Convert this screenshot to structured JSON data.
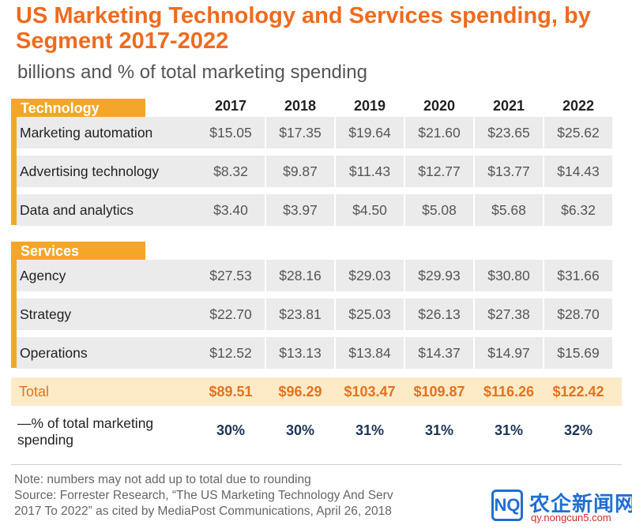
{
  "chart_data": {
    "type": "table",
    "title": "US Marketing Technology and Services spending, by Segment 2017-2022",
    "subtitle": "billions and % of total marketing spending",
    "years": [
      "2017",
      "2018",
      "2019",
      "2020",
      "2021",
      "2022"
    ],
    "sections": [
      {
        "name": "Technology",
        "rows": [
          {
            "label": "Marketing automation",
            "values": [
              "$15.05",
              "$17.35",
              "$19.64",
              "$21.60",
              "$23.65",
              "$25.62"
            ]
          },
          {
            "label": "Advertising technology",
            "values": [
              "$8.32",
              "$9.87",
              "$11.43",
              "$12.77",
              "$13.77",
              "$14.43"
            ]
          },
          {
            "label": "Data and analytics",
            "values": [
              "$3.40",
              "$3.97",
              "$4.50",
              "$5.08",
              "$5.68",
              "$6.32"
            ]
          }
        ]
      },
      {
        "name": "Services",
        "rows": [
          {
            "label": "Agency",
            "values": [
              "$27.53",
              "$28.16",
              "$29.03",
              "$29.93",
              "$30.80",
              "$31.66"
            ]
          },
          {
            "label": "Strategy",
            "values": [
              "$22.70",
              "$23.81",
              "$25.03",
              "$26.13",
              "$27.38",
              "$28.70"
            ]
          },
          {
            "label": "Operations",
            "values": [
              "$12.52",
              "$13.13",
              "$13.84",
              "$14.37",
              "$14.97",
              "$15.69"
            ]
          }
        ]
      }
    ],
    "total": {
      "label": "Total",
      "values": [
        "$89.51",
        "$96.29",
        "$103.47",
        "$109.87",
        "$116.26",
        "$122.42"
      ]
    },
    "percent_total": {
      "label": "—% of total marketing spending",
      "values": [
        "30%",
        "30%",
        "31%",
        "31%",
        "31%",
        "32%"
      ]
    }
  },
  "notes": {
    "line1": "Note: numbers may not add up to total due to rounding",
    "line2": "Source: Forrester Research, “The US Marketing Technology And Serv",
    "line3": "2017 To 2022”  as cited by MediaPost Communications, April 26, 2018"
  },
  "watermark": {
    "logo": "NQ",
    "text": "农企新闻网",
    "url": "qy.nongcun5.com"
  },
  "colors": {
    "title": "#ee6b1f",
    "section_header": "#f4a628",
    "cell_bg": "#ebebeb",
    "total_bg": "#fdebc8",
    "total_text": "#e4721e",
    "percent_text": "#1d3557"
  }
}
